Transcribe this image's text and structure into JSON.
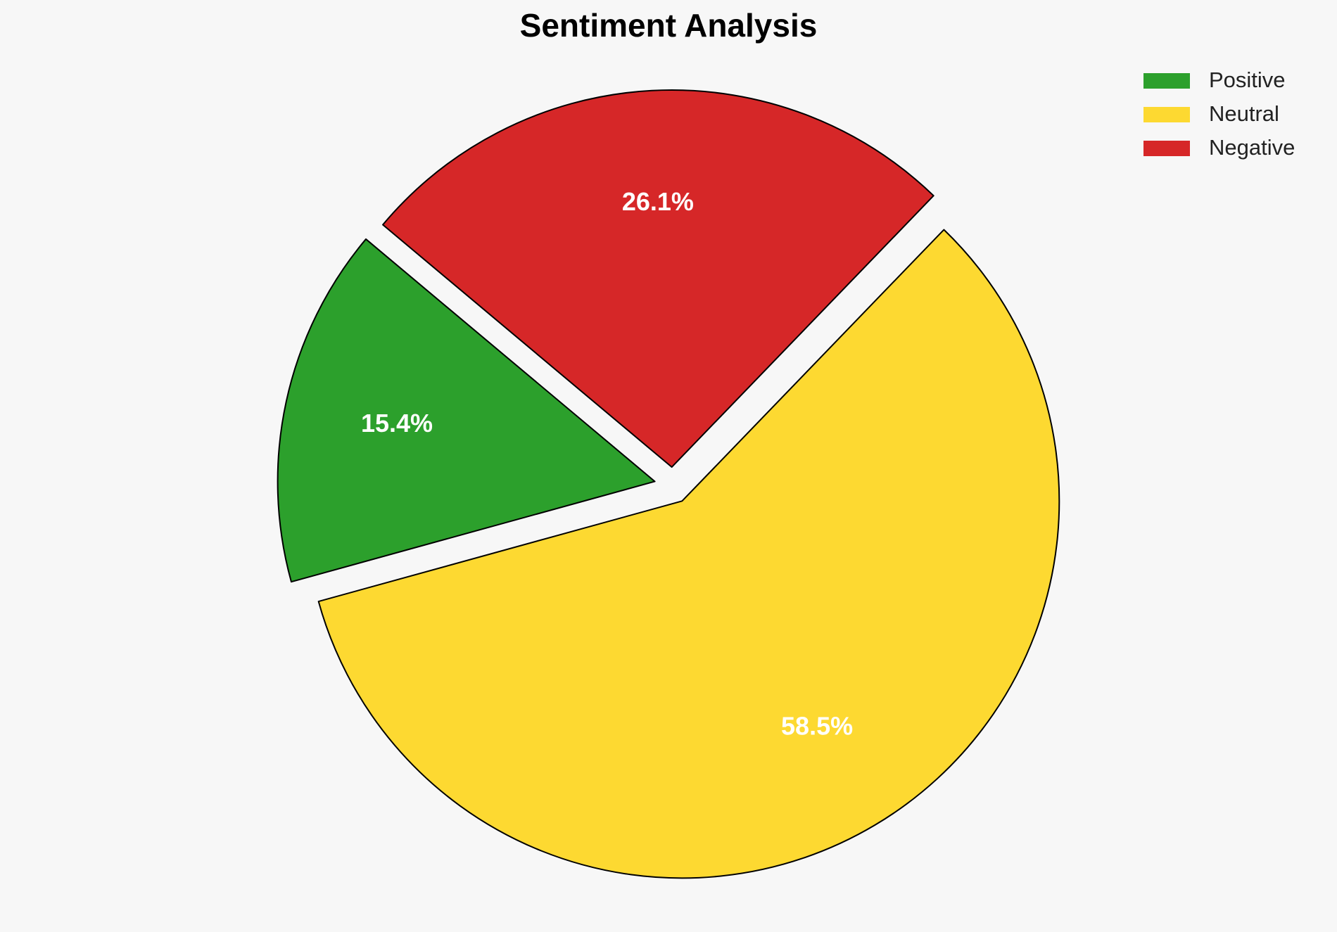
{
  "chart_data": {
    "type": "pie",
    "title": "Sentiment Analysis",
    "categories": [
      "Positive",
      "Neutral",
      "Negative"
    ],
    "values": [
      15.4,
      58.5,
      26.1
    ],
    "value_labels": [
      "15.4%",
      "58.5%",
      "26.1%"
    ],
    "colors": [
      "#2ca02c",
      "#fdd931",
      "#d62728"
    ],
    "legend": "upper right"
  }
}
